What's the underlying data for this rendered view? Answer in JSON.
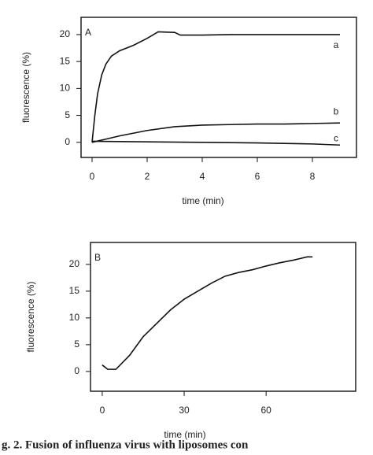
{
  "caption": "g. 2. Fusion of influenza virus with liposomes con",
  "chart_data": [
    {
      "type": "line",
      "panel_label": "A",
      "xlabel": "time (min)",
      "ylabel": "fluorescence (%)",
      "xlim": [
        -0.4,
        9.6
      ],
      "ylim": [
        -2.8,
        23.2
      ],
      "xticks": [
        0,
        2,
        4,
        6,
        8
      ],
      "yticks": [
        0,
        5,
        10,
        15,
        20
      ],
      "series": [
        {
          "name": "a",
          "color": "#111111",
          "x": [
            0,
            0.1,
            0.2,
            0.35,
            0.5,
            0.7,
            1,
            1.5,
            2,
            2.4,
            3,
            3.2,
            4,
            5,
            9
          ],
          "values": [
            0,
            5,
            9,
            12.5,
            14.5,
            16,
            17,
            18,
            19.3,
            20.5,
            20.4,
            19.9,
            19.9,
            20,
            20
          ]
        },
        {
          "name": "b",
          "color": "#111111",
          "x": [
            0,
            0.5,
            1,
            2,
            3,
            4,
            5,
            6,
            7,
            8,
            9
          ],
          "values": [
            0,
            0.6,
            1.2,
            2.2,
            2.9,
            3.2,
            3.3,
            3.4,
            3.4,
            3.5,
            3.6
          ]
        },
        {
          "name": "c",
          "color": "#111111",
          "x": [
            0,
            2,
            4,
            6,
            8,
            9
          ],
          "values": [
            0.2,
            0.1,
            0,
            -0.1,
            -0.3,
            -0.5
          ]
        }
      ]
    },
    {
      "type": "line",
      "panel_label": "B",
      "xlabel": "time (min)",
      "ylabel": "fluorescence (%)",
      "xlim": [
        -4.3,
        92.8
      ],
      "ylim": [
        -3.7,
        24.1
      ],
      "xticks": [
        0,
        30,
        60
      ],
      "yticks": [
        0,
        5,
        10,
        15,
        20
      ],
      "series": [
        {
          "color": "#111111",
          "x": [
            0,
            2,
            5,
            10,
            15,
            20,
            25,
            30,
            35,
            40,
            45,
            50,
            55,
            60,
            65,
            70,
            75,
            77
          ],
          "values": [
            1.2,
            0.4,
            0.4,
            3,
            6.5,
            9,
            11.5,
            13.5,
            15,
            16.5,
            17.8,
            18.5,
            19,
            19.7,
            20.3,
            20.8,
            21.4,
            21.4
          ]
        }
      ]
    }
  ]
}
